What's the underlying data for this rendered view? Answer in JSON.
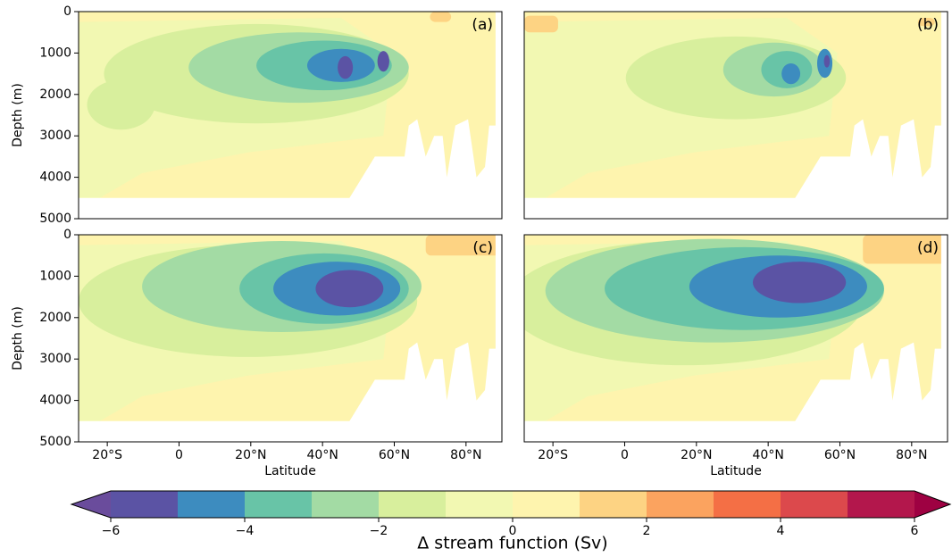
{
  "chart_data": [
    {
      "type": "contour",
      "label": "(a)",
      "ylabel": "Depth (m)",
      "xlim": [
        -28,
        90
      ],
      "ylim": [
        5000,
        0
      ],
      "yticks": [
        0,
        1000,
        2000,
        3000,
        4000,
        5000
      ]
    },
    {
      "type": "contour",
      "label": "(b)",
      "xlim": [
        -28,
        90
      ],
      "ylim": [
        5000,
        0
      ]
    },
    {
      "type": "contour",
      "label": "(c)",
      "ylabel": "Depth (m)",
      "xlabel": "Latitude",
      "xlim": [
        -28,
        90
      ],
      "ylim": [
        5000,
        0
      ],
      "yticks": [
        0,
        1000,
        2000,
        3000,
        4000,
        5000
      ],
      "xticks": [
        {
          "value": -20,
          "label": "20°S"
        },
        0,
        {
          "value": 20,
          "label": "20°N"
        },
        {
          "value": 40,
          "label": "40°N"
        },
        {
          "value": 60,
          "label": "60°N"
        },
        {
          "value": 80,
          "label": "80°N"
        }
      ]
    },
    {
      "type": "contour",
      "label": "(d)",
      "xlabel": "Latitude",
      "xlim": [
        -28,
        90
      ],
      "ylim": [
        5000,
        0
      ],
      "xticks": [
        {
          "value": -20,
          "label": "20°S"
        },
        0,
        {
          "value": 20,
          "label": "20°N"
        },
        {
          "value": 40,
          "label": "40°N"
        },
        {
          "value": 60,
          "label": "60°N"
        },
        {
          "value": 80,
          "label": "80°N"
        }
      ]
    },
    {
      "type": "colorbar",
      "label": "Δ stream function (Sv)",
      "xlim": [
        -6,
        6
      ],
      "colors": [
        "#5b53a4",
        "#3d8cbf",
        "#68c4a7",
        "#a3dba4",
        "#d8ef9d",
        "#f2f8b2",
        "#fef4ae",
        "#fdd383",
        "#fba35f",
        "#f46f45",
        "#dc494c",
        "#b3174c"
      ],
      "extend_colors": [
        "#6a4c9c",
        "#9e0142"
      ],
      "xticks": [
        {
          "value": -6,
          "label": "−6"
        },
        {
          "value": -4,
          "label": "−4"
        },
        {
          "value": -2,
          "label": "−2"
        },
        0,
        2,
        4,
        6
      ]
    }
  ]
}
